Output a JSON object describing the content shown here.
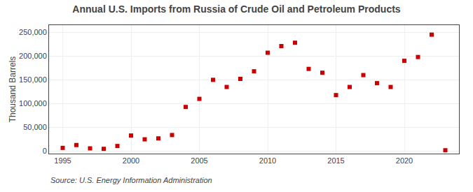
{
  "chart_data": {
    "type": "scatter",
    "title": "Annual U.S. Imports from Russia of Crude Oil and Petroleum Products",
    "ylabel": "Thousand Barrels",
    "annotations": [
      "Source: U.S. Energy Information Administration"
    ],
    "x": [
      1995,
      1996,
      1997,
      1998,
      1999,
      2000,
      2001,
      2002,
      2003,
      2004,
      2005,
      2006,
      2007,
      2008,
      2009,
      2010,
      2011,
      2012,
      2013,
      2014,
      2015,
      2016,
      2017,
      2018,
      2019,
      2020,
      2021,
      2022,
      2023
    ],
    "values": [
      7000,
      13000,
      6000,
      5000,
      11000,
      33000,
      25000,
      27000,
      34000,
      93000,
      110000,
      150000,
      135000,
      152000,
      168000,
      207000,
      221000,
      228000,
      173000,
      165000,
      118000,
      135000,
      160000,
      143000,
      135000,
      190000,
      198000,
      245000,
      2000
    ],
    "color": "#CC0000",
    "marker": "square",
    "xlim": [
      1994,
      2024
    ],
    "ylim": [
      -5000,
      265000
    ],
    "xticks": [
      1995,
      2000,
      2005,
      2010,
      2015,
      2020
    ],
    "yticks": [
      0,
      {
        "value": 50000,
        "label": "50,000"
      },
      {
        "value": 100000,
        "label": "100,000"
      },
      {
        "value": 150000,
        "label": "150,000"
      },
      {
        "value": 200000,
        "label": "200,000"
      },
      {
        "value": 250000,
        "label": "250,000"
      }
    ],
    "grid": true
  }
}
